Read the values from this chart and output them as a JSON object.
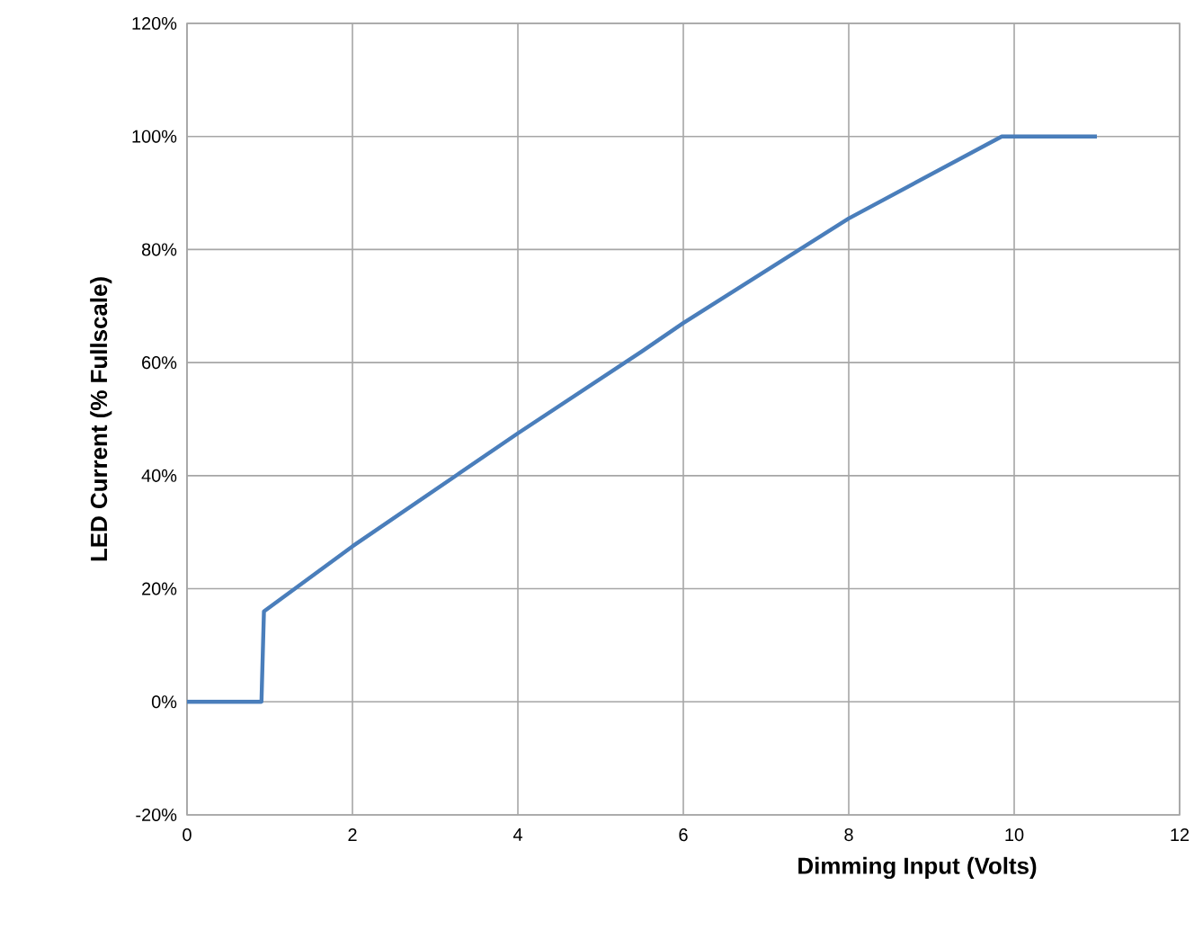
{
  "chart_data": {
    "type": "line",
    "xlabel": "Dimming Input (Volts)",
    "ylabel": "LED Current (% Fullscale)",
    "x": [
      0,
      0.9,
      0.93,
      2,
      4,
      5.5,
      6,
      8,
      9.85,
      11
    ],
    "series": [
      {
        "color": "#4a7ebb",
        "values": [
          0,
          0,
          16,
          27.5,
          47.5,
          62,
          67,
          85.5,
          100,
          100
        ]
      }
    ],
    "xlim": [
      0,
      12
    ],
    "ylim": [
      -20,
      120
    ],
    "xticks": [
      0,
      2,
      4,
      6,
      8,
      10,
      12
    ],
    "yticks": [
      {
        "value": -20,
        "label": "-20%"
      },
      {
        "value": 0,
        "label": "0%"
      },
      {
        "value": 20,
        "label": "20%"
      },
      {
        "value": 40,
        "label": "40%"
      },
      {
        "value": 60,
        "label": "60%"
      },
      {
        "value": 80,
        "label": "80%"
      },
      {
        "value": 100,
        "label": "100%"
      },
      {
        "value": 120,
        "label": "120%"
      }
    ],
    "grid": true,
    "marker": "none",
    "line_style": "solid"
  }
}
